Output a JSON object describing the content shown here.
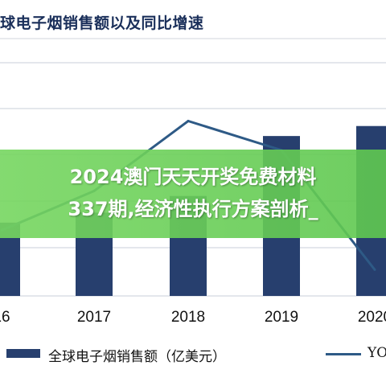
{
  "title": "球电子烟销售额以及同比增速",
  "overlay": {
    "line1": "2024澳门天天开奖免费材料",
    "line2": "337期,经济性执行方案剖析_"
  },
  "legend": {
    "bar_label": "全球电子烟销售额（亿美元）",
    "line_label": "YO"
  },
  "colors": {
    "bar": "#273f6e",
    "line": "#2e5a86",
    "grid": "#c9cfd8",
    "banner": "#6fd35a"
  },
  "chart_data": {
    "type": "bar",
    "categories": [
      "16",
      "2017",
      "2018",
      "2019",
      "2020"
    ],
    "series": [
      {
        "name": "全球电子烟销售额（亿美元）",
        "type": "bar",
        "values": [
          220,
          250,
          300,
          480,
          510
        ]
      },
      {
        "name": "YO",
        "type": "line",
        "values": [
          -15,
          12,
          60,
          40,
          -42
        ]
      }
    ],
    "ylim_bar": [
      0,
      700
    ],
    "ylim_line": [
      -60,
      100
    ],
    "grid": true,
    "legend_position": "bottom"
  }
}
